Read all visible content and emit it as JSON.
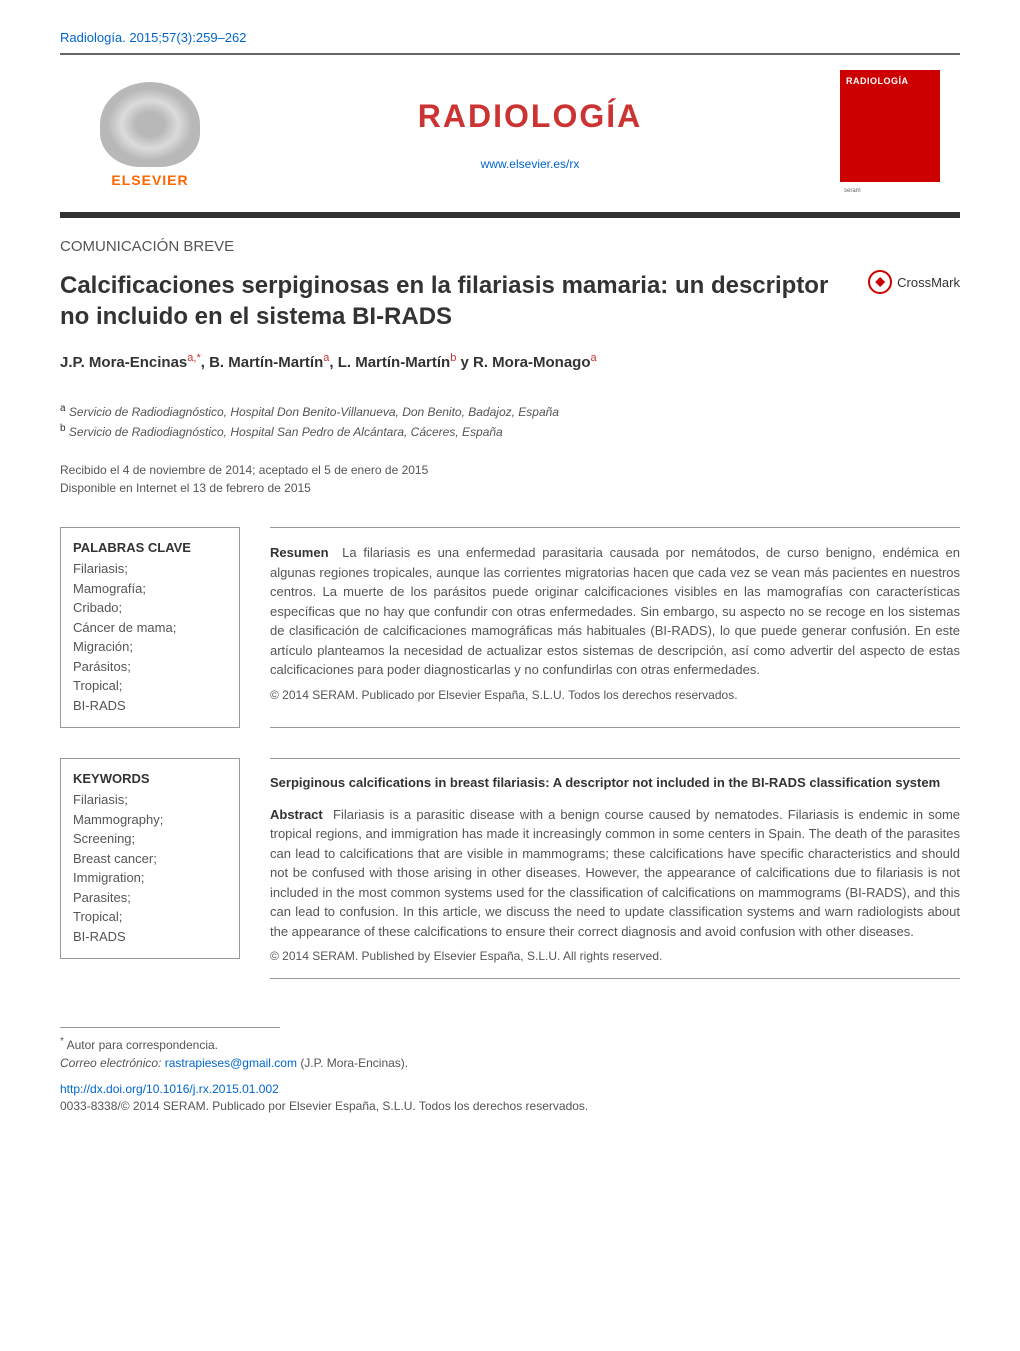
{
  "citation": "Radiología. 2015;57(3):259–262",
  "publisher": {
    "name": "ELSEVIER",
    "logo_color": "#ff6600"
  },
  "journal": {
    "name": "RADIOLOGÍA",
    "name_color": "#cc3333",
    "url": "www.elsevier.es/rx",
    "cover_title": "RADIOLOGÍA",
    "cover_bg": "#cc0000",
    "cover_seram": "seram"
  },
  "article_type": "COMUNICACIÓN BREVE",
  "title": "Calcificaciones serpiginosas en la filariasis mamaria: un descriptor no incluido en el sistema BI-RADS",
  "crossmark_label": "CrossMark",
  "authors_html": "J.P. Mora-Encinas<sup>a,*</sup>, B. Martín-Martín<sup>a</sup>, L. Martín-Martín<sup>b</sup> y R. Mora-Monago<sup>a</sup>",
  "affiliations": {
    "a": "Servicio de Radiodiagnóstico, Hospital Don Benito-Villanueva, Don Benito, Badajoz, España",
    "b": "Servicio de Radiodiagnóstico, Hospital San Pedro de Alcántara, Cáceres, España"
  },
  "dates": {
    "received_accepted": "Recibido el 4 de noviembre de 2014; aceptado el 5 de enero de 2015",
    "online": "Disponible en Internet el 13 de febrero de 2015"
  },
  "spanish": {
    "keywords_heading": "PALABRAS CLAVE",
    "keywords": [
      "Filariasis;",
      "Mamografía;",
      "Cribado;",
      "Cáncer de mama;",
      "Migración;",
      "Parásitos;",
      "Tropical;",
      "BI-RADS"
    ],
    "abstract_label": "Resumen",
    "abstract_text": "La filariasis es una enfermedad parasitaria causada por nemátodos, de curso benigno, endémica en algunas regiones tropicales, aunque las corrientes migratorias hacen que cada vez se vean más pacientes en nuestros centros. La muerte de los parásitos puede originar calcificaciones visibles en las mamografías con características específicas que no hay que confundir con otras enfermedades. Sin embargo, su aspecto no se recoge en los sistemas de clasificación de calcificaciones mamográficas más habituales (BI-RADS), lo que puede generar confusión. En este artículo planteamos la necesidad de actualizar estos sistemas de descripción, así como advertir del aspecto de estas calcificaciones para poder diagnosticarlas y no confundirlas con otras enfermedades.",
    "copyright": "© 2014 SERAM. Publicado por Elsevier España, S.L.U. Todos los derechos reservados."
  },
  "english": {
    "keywords_heading": "KEYWORDS",
    "keywords": [
      "Filariasis;",
      "Mammography;",
      "Screening;",
      "Breast cancer;",
      "Immigration;",
      "Parasites;",
      "Tropical;",
      "BI-RADS"
    ],
    "title": "Serpiginous calcifications in breast filariasis: A descriptor not included in the BI-RADS classification system",
    "abstract_label": "Abstract",
    "abstract_text": "Filariasis is a parasitic disease with a benign course caused by nematodes. Filariasis is endemic in some tropical regions, and immigration has made it increasingly common in some centers in Spain. The death of the parasites can lead to calcifications that are visible in mammograms; these calcifications have specific characteristics and should not be confused with those arising in other diseases. However, the appearance of calcifications due to filariasis is not included in the most common systems used for the classification of calcifications on mammograms (BI-RADS), and this can lead to confusion. In this article, we discuss the need to update classification systems and warn radiologists about the appearance of these calcifications to ensure their correct diagnosis and avoid confusion with other diseases.",
    "copyright": "© 2014 SERAM. Published by Elsevier España, S.L.U. All rights reserved."
  },
  "footer": {
    "corresponding_label": "Autor para correspondencia.",
    "email_label": "Correo electrónico:",
    "email": "rastrapieses@gmail.com",
    "email_author": "(J.P. Mora-Encinas).",
    "doi": "http://dx.doi.org/10.1016/j.rx.2015.01.002",
    "issn_copyright": "0033-8338/© 2014 SERAM. Publicado por Elsevier España, S.L.U. Todos los derechos reservados."
  },
  "colors": {
    "link": "#0066cc",
    "accent": "#cc3333",
    "text": "#333333",
    "muted": "#555555"
  }
}
